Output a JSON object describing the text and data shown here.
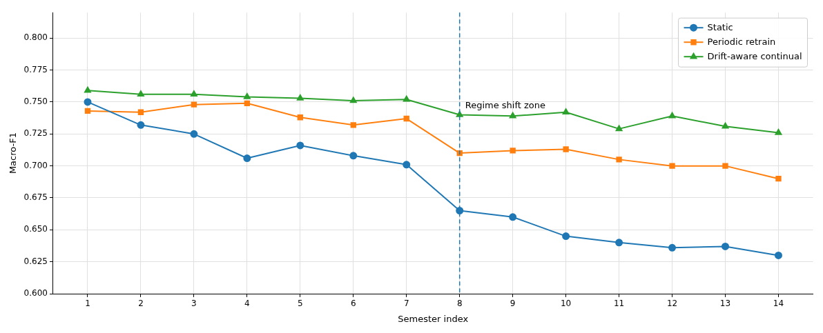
{
  "chart_data": {
    "type": "line",
    "xlabel": "Semester index",
    "ylabel": "Macro-F1",
    "x": [
      1,
      2,
      3,
      4,
      5,
      6,
      7,
      8,
      9,
      10,
      11,
      12,
      13,
      14
    ],
    "series": [
      {
        "name": "Static",
        "color": "#1f77b4",
        "marker": "circle",
        "values": [
          0.75,
          0.732,
          0.725,
          0.706,
          0.716,
          0.708,
          0.701,
          0.665,
          0.66,
          0.645,
          0.64,
          0.636,
          0.637,
          0.63
        ]
      },
      {
        "name": "Periodic retrain",
        "color": "#ff7f0e",
        "marker": "square",
        "values": [
          0.743,
          0.742,
          0.748,
          0.749,
          0.738,
          0.732,
          0.737,
          0.71,
          0.712,
          0.713,
          0.705,
          0.7,
          0.7,
          0.69
        ]
      },
      {
        "name": "Drift-aware continual",
        "color": "#2ca02c",
        "marker": "triangle",
        "values": [
          0.759,
          0.756,
          0.756,
          0.754,
          0.753,
          0.751,
          0.752,
          0.74,
          0.739,
          0.742,
          0.729,
          0.739,
          0.731,
          0.726
        ]
      }
    ],
    "xlim": [
      0.35,
      14.65
    ],
    "xticks": [
      1,
      2,
      3,
      4,
      5,
      6,
      7,
      8,
      9,
      10,
      11,
      12,
      13,
      14
    ],
    "ylim": [
      0.6,
      0.82
    ],
    "yticks": [
      {
        "value": 0.6,
        "label": "0.600"
      },
      {
        "value": 0.625,
        "label": "0.625"
      },
      {
        "value": 0.65,
        "label": "0.650"
      },
      {
        "value": 0.675,
        "label": "0.675"
      },
      {
        "value": 0.7,
        "label": "0.700"
      },
      {
        "value": 0.725,
        "label": "0.725"
      },
      {
        "value": 0.75,
        "label": "0.750"
      },
      {
        "value": 0.775,
        "label": "0.775"
      },
      {
        "value": 0.8,
        "label": "0.800"
      }
    ],
    "ref_lines": [
      {
        "axis": "x",
        "value": 8,
        "color": "#1f77b4",
        "line_style": "dashed",
        "label": "Regime shift zone"
      }
    ],
    "grid": true,
    "legend": "top right",
    "line_style": "solid"
  }
}
